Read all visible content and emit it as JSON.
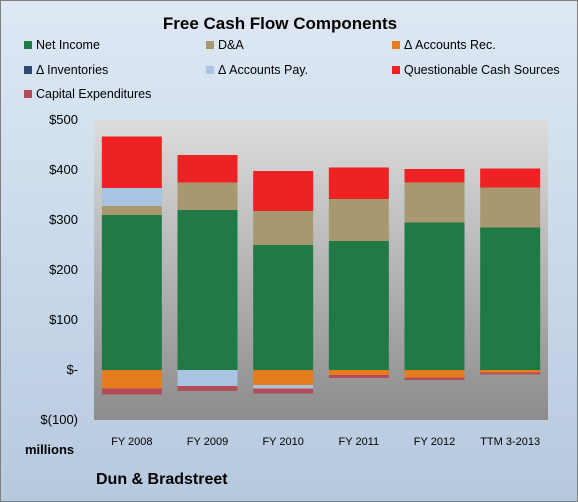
{
  "chart_data": {
    "type": "bar",
    "stacked": true,
    "title": "Free Cash Flow Components",
    "ylabel": "",
    "units_label": "millions",
    "source_label": "Dun & Bradstreet",
    "ylim": [
      -100,
      500
    ],
    "ytick_values": [
      -100,
      0,
      100,
      200,
      300,
      400,
      500
    ],
    "ytick_labels": [
      "$(100)",
      "$-",
      "$100",
      "$200",
      "$300",
      "$400",
      "$500"
    ],
    "categories": [
      "FY 2008",
      "FY 2009",
      "FY 2010",
      "FY 2011",
      "FY 2012",
      "TTM 3-2013"
    ],
    "legend_position": "top",
    "series": [
      {
        "name": "Net Income",
        "color": "#1f7a45",
        "values": [
          310,
          320,
          250,
          258,
          295,
          285
        ]
      },
      {
        "name": "D&A",
        "color": "#a89870",
        "values": [
          18,
          55,
          68,
          84,
          80,
          80
        ]
      },
      {
        "name": "Δ Accounts Rec.",
        "color": "#e57c1e",
        "values": [
          -37,
          0,
          -30,
          -10,
          -15,
          -5
        ]
      },
      {
        "name": "Δ Inventories",
        "color": "#2c4a6e",
        "values": [
          0,
          0,
          0,
          0,
          0,
          0
        ]
      },
      {
        "name": "Δ Accounts Pay.",
        "color": "#a9c3e2",
        "values": [
          36,
          -32,
          -7,
          0,
          0,
          0
        ]
      },
      {
        "name": "Questionable Cash Sources",
        "color": "#ee2222",
        "values": [
          103,
          55,
          80,
          63,
          27,
          38
        ]
      },
      {
        "name": "Capital Expenditures",
        "color": "#b24c58",
        "values": [
          -12,
          -10,
          -10,
          -6,
          -5,
          -4
        ]
      }
    ]
  }
}
